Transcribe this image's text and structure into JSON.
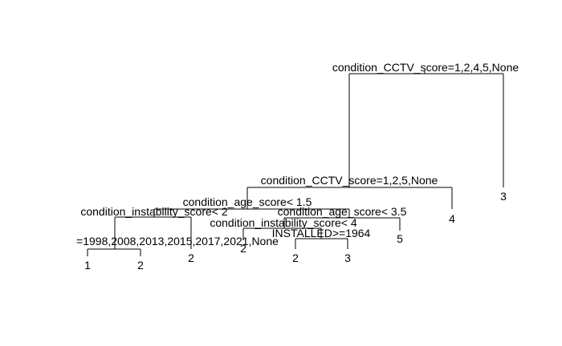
{
  "diagram": {
    "type": "decision-tree",
    "splits": {
      "root": "condition_CCTV_score=1,2,4,5,None",
      "s1": "condition_CCTV_score=1,2,5,None",
      "s2": "condition_age_score< 1.5",
      "s3": "condition_instability_score< 2",
      "s4": "=1998,2008,2013,2015,2017,2021,None",
      "s5": "condition_age_score< 3.5",
      "s6": "condition_instability_score< 4",
      "s7": "INSTALLED>=1964"
    },
    "leaves": {
      "l_root_right": "3",
      "l_s1_right": "4",
      "l_s3_right": "2",
      "l_s4_left": "1",
      "l_s4_right": "2",
      "l_s5_right": "5",
      "l_s6_left": "2",
      "l_s7_left": "2",
      "l_s7_right": "3"
    }
  }
}
